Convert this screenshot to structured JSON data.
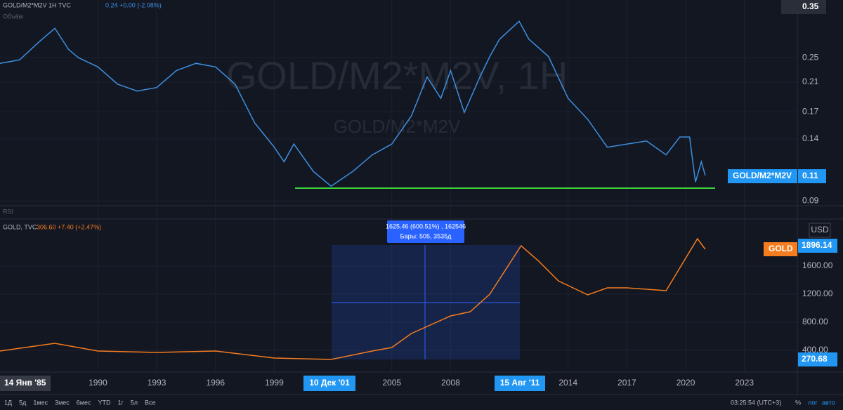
{
  "ui": {
    "top_legend": "GOLD/M2*M2V  1H  TVC",
    "top_quote": "0.24 +0.00 (-2.08%)",
    "volume": "Объём",
    "watermark": "GOLD/M2*M2V, 1H",
    "watermark_sub": "GOLD/M2*M2V",
    "rsi": "RSI",
    "bottom_legend": "GOLD, TVC",
    "bottom_quote": "306.60 +7.40 (+2.47%)",
    "top_price_badge": "0.35",
    "top_series_badge": "GOLD/M2*M2V",
    "top_last": "0.11",
    "currency": "USD",
    "bottom_series_badge": "GOLD",
    "bottom_last": "1896.14",
    "bottom_cursor": "270.68",
    "measure_line1": "1625.46 (600.51%) , 162546",
    "measure_line2": "Бары: 505, 3535д",
    "date_left": "14 Янв '85",
    "date_start": "10 Дек '01",
    "date_end": "15 Авг '11",
    "ranges": [
      "1Д",
      "5д",
      "1мес",
      "3мес",
      "6мес",
      "YTD",
      "1г",
      "5л",
      "Все"
    ],
    "clock": "03:25:54 (UTC+3)",
    "percent": "%",
    "log": "лог",
    "auto": "авто"
  },
  "chart_data": [
    {
      "type": "line",
      "log": true,
      "ylim": [
        0.087,
        0.377
      ],
      "yticks": [
        0.25,
        0.21,
        0.17,
        0.14,
        0.09
      ],
      "xlim": [
        1985,
        2025.7
      ],
      "series": [
        {
          "name": "GOLD/M2*M2V",
          "color": "#3d8fe0",
          "x": [
            1985,
            1986,
            1987,
            1987.8,
            1988.5,
            1989,
            1990,
            1991,
            1992,
            1993,
            1994,
            1995,
            1996,
            1997,
            1998,
            1999,
            1999.5,
            2000,
            2001,
            2001.9,
            2003,
            2004,
            2005,
            2006,
            2006.8,
            2007.5,
            2008,
            2008.7,
            2009.5,
            2010,
            2010.5,
            2011.5,
            2012,
            2013,
            2014,
            2015,
            2016,
            2017,
            2018,
            2019,
            2019.7,
            2020.2,
            2020.5,
            2020.8,
            2021
          ],
          "values": [
            0.24,
            0.246,
            0.28,
            0.308,
            0.265,
            0.25,
            0.234,
            0.207,
            0.197,
            0.202,
            0.228,
            0.24,
            0.234,
            0.207,
            0.157,
            0.132,
            0.119,
            0.135,
            0.111,
            0.1,
            0.111,
            0.125,
            0.135,
            0.165,
            0.218,
            0.187,
            0.228,
            0.169,
            0.218,
            0.252,
            0.285,
            0.324,
            0.285,
            0.252,
            0.187,
            0.161,
            0.132,
            0.135,
            0.138,
            0.125,
            0.142,
            0.142,
            0.103,
            0.119,
            0.108
          ]
        }
      ]
    },
    {
      "type": "line",
      "log": false,
      "ylim": [
        90,
        2270
      ],
      "yticks": [
        {
          "value": 400,
          "label": "400.00"
        },
        {
          "value": 800,
          "label": "800.00"
        },
        {
          "value": 1200,
          "label": "1200.00"
        },
        {
          "value": 1600,
          "label": "1600.00"
        }
      ],
      "xlim": [
        1985,
        2025.7
      ],
      "xticks": [
        1990,
        1993,
        1996,
        1999,
        2005,
        2008,
        2014,
        2017,
        2020,
        2023
      ],
      "series": [
        {
          "name": "GOLD",
          "color": "#f57c1f",
          "x": [
            1985,
            1987.8,
            1990,
            1993,
            1996,
            1999,
            2001.9,
            2004,
            2005,
            2006,
            2008,
            2009,
            2010,
            2011.6,
            2012.5,
            2013.5,
            2015,
            2016,
            2017,
            2019,
            2020.6,
            2021
          ],
          "values": [
            390,
            500,
            390,
            370,
            390,
            290,
            270,
            390,
            440,
            640,
            890,
            950,
            1200,
            1890,
            1670,
            1390,
            1190,
            1290,
            1290,
            1250,
            1990,
            1840
          ]
        }
      ]
    }
  ]
}
